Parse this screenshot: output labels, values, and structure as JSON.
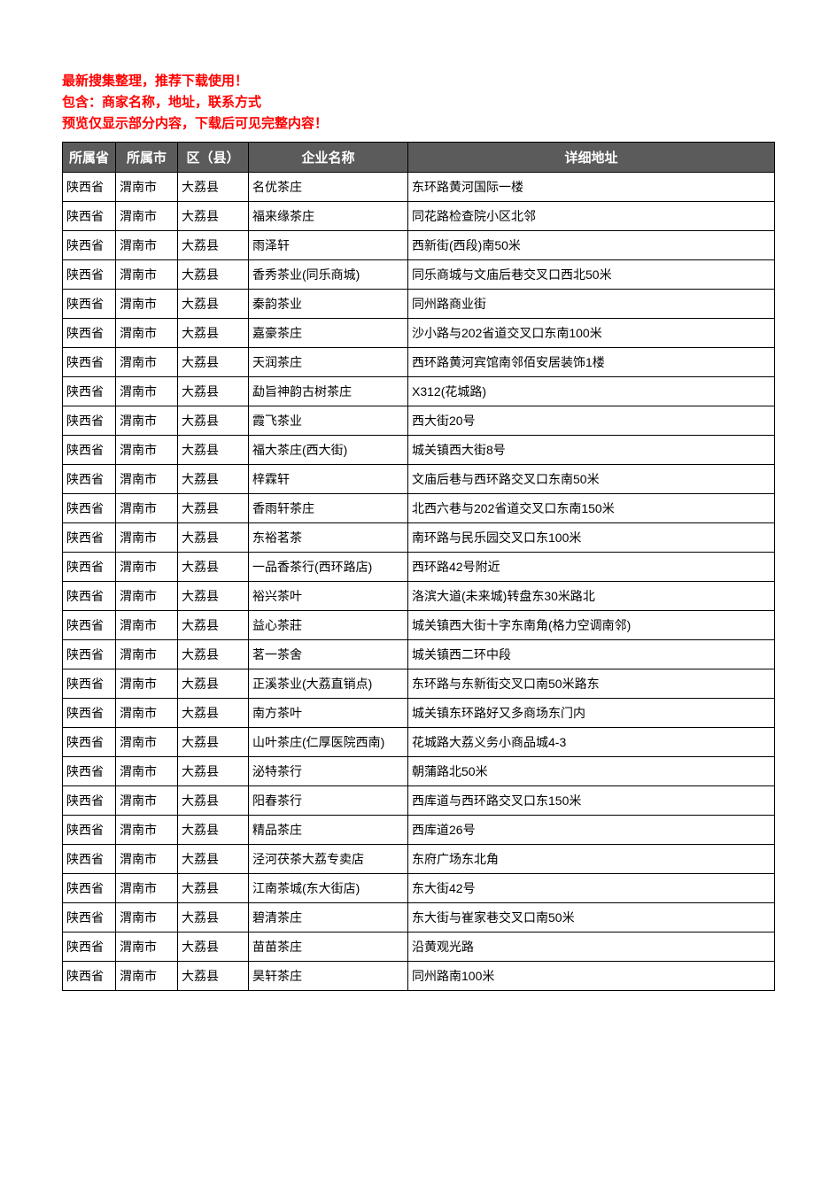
{
  "header_notes": [
    "最新搜集整理，推荐下载使用！",
    "包含：商家名称，地址，联系方式",
    "预览仅显示部分内容，下载后可见完整内容！"
  ],
  "header_note_color": "#ff0000",
  "table_header_bg": "#5b5b5b",
  "columns": [
    "所属省",
    "所属市",
    "区（县）",
    "企业名称",
    "详细地址"
  ],
  "rows": [
    [
      "陕西省",
      "渭南市",
      "大荔县",
      "名优茶庄",
      "东环路黄河国际一楼"
    ],
    [
      "陕西省",
      "渭南市",
      "大荔县",
      "福来缘茶庄",
      "同花路检查院小区北邻"
    ],
    [
      "陕西省",
      "渭南市",
      "大荔县",
      "雨泽轩",
      "西新街(西段)南50米"
    ],
    [
      "陕西省",
      "渭南市",
      "大荔县",
      "香秀茶业(同乐商城)",
      "同乐商城与文庙后巷交叉口西北50米"
    ],
    [
      "陕西省",
      "渭南市",
      "大荔县",
      "秦韵茶业",
      "同州路商业街"
    ],
    [
      "陕西省",
      "渭南市",
      "大荔县",
      "嘉豪茶庄",
      "沙小路与202省道交叉口东南100米"
    ],
    [
      "陕西省",
      "渭南市",
      "大荔县",
      "天润茶庄",
      "西环路黄河宾馆南邻佰安居装饰1楼"
    ],
    [
      "陕西省",
      "渭南市",
      "大荔县",
      "勐旨神韵古树茶庄",
      "X312(花城路)"
    ],
    [
      "陕西省",
      "渭南市",
      "大荔县",
      "霞飞茶业",
      "西大街20号"
    ],
    [
      "陕西省",
      "渭南市",
      "大荔县",
      "福大茶庄(西大街)",
      "城关镇西大街8号"
    ],
    [
      "陕西省",
      "渭南市",
      "大荔县",
      "梓霖轩",
      "文庙后巷与西环路交叉口东南50米"
    ],
    [
      "陕西省",
      "渭南市",
      "大荔县",
      "香雨轩茶庄",
      "北西六巷与202省道交叉口东南150米"
    ],
    [
      "陕西省",
      "渭南市",
      "大荔县",
      "东裕茗茶",
      "南环路与民乐园交叉口东100米"
    ],
    [
      "陕西省",
      "渭南市",
      "大荔县",
      "一品香茶行(西环路店)",
      "西环路42号附近"
    ],
    [
      "陕西省",
      "渭南市",
      "大荔县",
      "裕兴茶叶",
      "洛滨大道(未来城)转盘东30米路北"
    ],
    [
      "陕西省",
      "渭南市",
      "大荔县",
      "益心茶莊",
      "城关镇西大街十字东南角(格力空调南邻)"
    ],
    [
      "陕西省",
      "渭南市",
      "大荔县",
      "茗一茶舍",
      "城关镇西二环中段"
    ],
    [
      "陕西省",
      "渭南市",
      "大荔县",
      "正溪茶业(大荔直销点)",
      "东环路与东新街交叉口南50米路东"
    ],
    [
      "陕西省",
      "渭南市",
      "大荔县",
      "南方茶叶",
      "城关镇东环路好又多商场东门内"
    ],
    [
      "陕西省",
      "渭南市",
      "大荔县",
      "山叶茶庄(仁厚医院西南)",
      "花城路大荔义务小商品城4-3"
    ],
    [
      "陕西省",
      "渭南市",
      "大荔县",
      "泌特茶行",
      "朝蒲路北50米"
    ],
    [
      "陕西省",
      "渭南市",
      "大荔县",
      "阳春茶行",
      "西库道与西环路交叉口东150米"
    ],
    [
      "陕西省",
      "渭南市",
      "大荔县",
      "精品茶庄",
      "西库道26号"
    ],
    [
      "陕西省",
      "渭南市",
      "大荔县",
      "泾河茯茶大荔专卖店",
      "东府广场东北角"
    ],
    [
      "陕西省",
      "渭南市",
      "大荔县",
      "江南茶城(东大街店)",
      "东大街42号"
    ],
    [
      "陕西省",
      "渭南市",
      "大荔县",
      "碧清茶庄",
      "东大街与崔家巷交叉口南50米"
    ],
    [
      "陕西省",
      "渭南市",
      "大荔县",
      "苗苗茶庄",
      "沿黄观光路"
    ],
    [
      "陕西省",
      "渭南市",
      "大荔县",
      "昊轩茶庄",
      "同州路南100米"
    ]
  ]
}
